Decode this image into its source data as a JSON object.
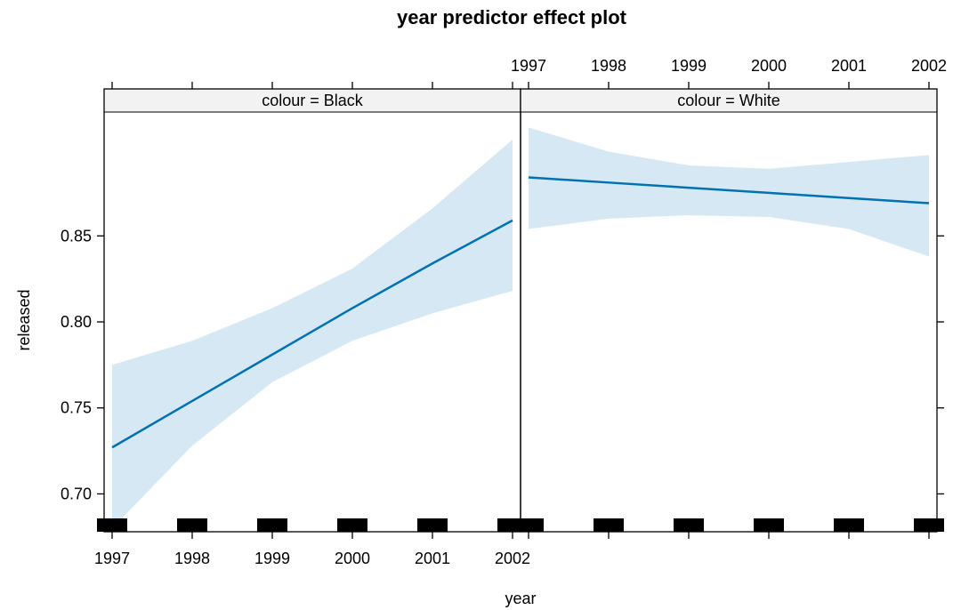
{
  "chart_data": {
    "type": "line",
    "title": "year predictor effect plot",
    "xlabel": "year",
    "ylabel": "released",
    "x_ticks": [
      "1997",
      "1998",
      "1999",
      "2000",
      "2001",
      "2002"
    ],
    "y_ticks": [
      "0.70",
      "0.75",
      "0.80",
      "0.85"
    ],
    "xlim": [
      1996.9,
      2002.1
    ],
    "ylim": [
      0.678,
      0.922
    ],
    "grid": false,
    "rug_x": [
      1997,
      1998,
      1999,
      2000,
      2001,
      2002
    ],
    "colors": {
      "line": "#0072b2",
      "band": "#d6e8f3",
      "strip": "#f2f2f2",
      "rug": "#000000"
    },
    "panels": [
      {
        "strip_label": "colour = Black",
        "x": [
          1997,
          1998,
          1999,
          2000,
          2001,
          2002
        ],
        "fit": [
          0.727,
          0.754,
          0.781,
          0.808,
          0.834,
          0.859
        ],
        "lower": [
          0.68,
          0.728,
          0.765,
          0.789,
          0.805,
          0.818
        ],
        "upper": [
          0.775,
          0.789,
          0.808,
          0.831,
          0.866,
          0.906
        ]
      },
      {
        "strip_label": "colour = White",
        "x": [
          1997,
          1998,
          1999,
          2000,
          2001,
          2002
        ],
        "fit": [
          0.884,
          0.881,
          0.878,
          0.875,
          0.872,
          0.869
        ],
        "lower": [
          0.854,
          0.86,
          0.862,
          0.861,
          0.854,
          0.838
        ],
        "upper": [
          0.913,
          0.899,
          0.891,
          0.889,
          0.893,
          0.897
        ]
      }
    ]
  }
}
